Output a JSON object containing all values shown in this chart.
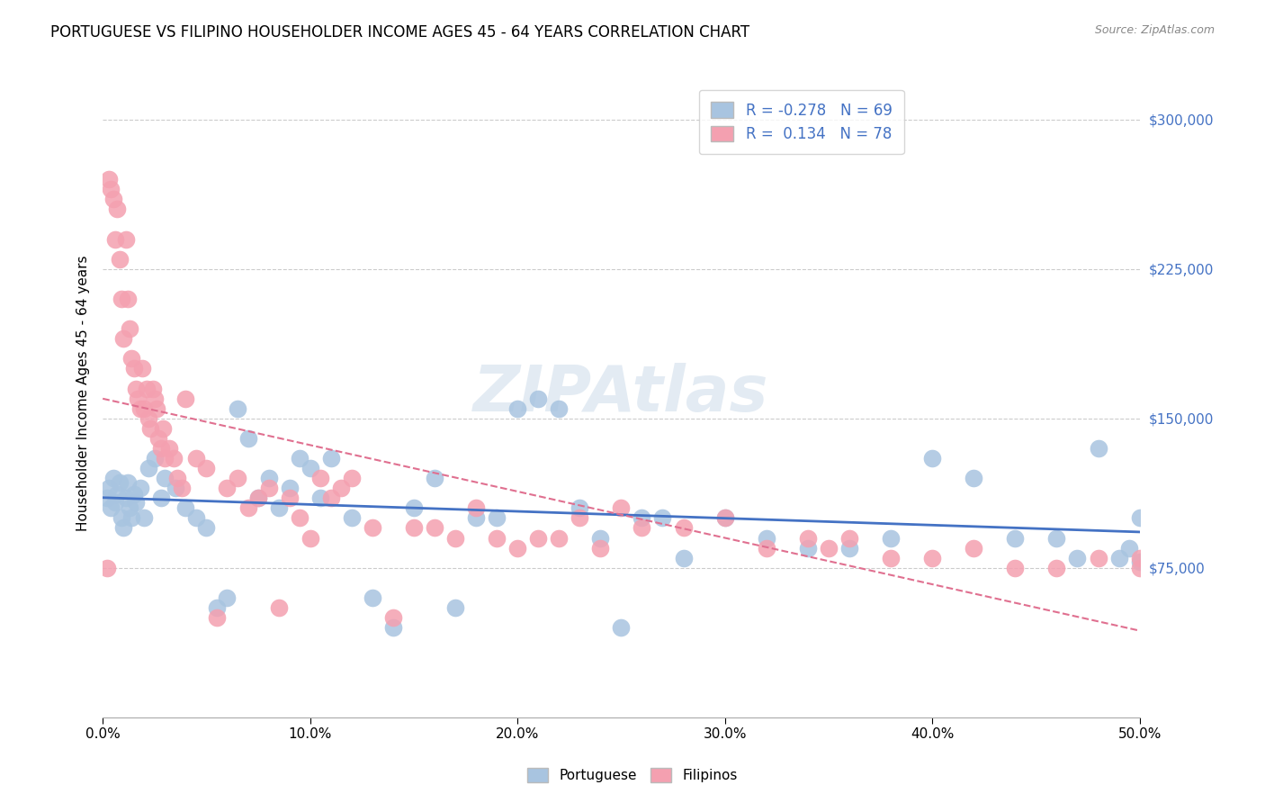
{
  "title": "PORTUGUESE VS FILIPINO HOUSEHOLDER INCOME AGES 45 - 64 YEARS CORRELATION CHART",
  "source": "Source: ZipAtlas.com",
  "xlabel_ticks": [
    "0.0%",
    "10.0%",
    "20.0%",
    "30.0%",
    "40.0%",
    "50.0%"
  ],
  "xlabel_vals": [
    0,
    10,
    20,
    30,
    40,
    50
  ],
  "ylabel_ticks": [
    "$75,000",
    "$150,000",
    "$225,000",
    "$300,000"
  ],
  "ylabel_vals": [
    75000,
    150000,
    225000,
    300000
  ],
  "ylabel_label": "Householder Income Ages 45 - 64 years",
  "xmin": 0,
  "xmax": 50,
  "ymin": 0,
  "ymax": 325000,
  "portuguese_R": -0.278,
  "portuguese_N": 69,
  "filipino_R": 0.134,
  "filipino_N": 78,
  "portuguese_color": "#a8c4e0",
  "filipino_color": "#f4a0b0",
  "portuguese_line_color": "#4472c4",
  "filipino_line_color": "#e07090",
  "watermark": "ZIPAtlas",
  "portuguese_x": [
    0.2,
    0.3,
    0.4,
    0.5,
    0.6,
    0.7,
    0.8,
    0.9,
    1.0,
    1.1,
    1.2,
    1.3,
    1.4,
    1.5,
    1.6,
    1.8,
    2.0,
    2.2,
    2.5,
    2.8,
    3.0,
    3.5,
    4.0,
    4.5,
    5.0,
    5.5,
    6.0,
    6.5,
    7.0,
    7.5,
    8.0,
    8.5,
    9.0,
    9.5,
    10.0,
    10.5,
    11.0,
    12.0,
    13.0,
    14.0,
    15.0,
    16.0,
    17.0,
    18.0,
    19.0,
    20.0,
    21.0,
    22.0,
    23.0,
    24.0,
    25.0,
    26.0,
    27.0,
    28.0,
    30.0,
    32.0,
    34.0,
    36.0,
    38.0,
    40.0,
    42.0,
    44.0,
    46.0,
    47.0,
    48.0,
    49.0,
    49.5,
    50.0,
    50.0
  ],
  "portuguese_y": [
    110000,
    115000,
    105000,
    120000,
    108000,
    112000,
    118000,
    100000,
    95000,
    110000,
    118000,
    105000,
    100000,
    112000,
    108000,
    115000,
    100000,
    125000,
    130000,
    110000,
    120000,
    115000,
    105000,
    100000,
    95000,
    55000,
    60000,
    155000,
    140000,
    110000,
    120000,
    105000,
    115000,
    130000,
    125000,
    110000,
    130000,
    100000,
    60000,
    45000,
    105000,
    120000,
    55000,
    100000,
    100000,
    155000,
    160000,
    155000,
    105000,
    90000,
    45000,
    100000,
    100000,
    80000,
    100000,
    90000,
    85000,
    85000,
    90000,
    130000,
    120000,
    90000,
    90000,
    80000,
    135000,
    80000,
    85000,
    78000,
    100000
  ],
  "filipino_x": [
    0.2,
    0.3,
    0.4,
    0.5,
    0.6,
    0.7,
    0.8,
    0.9,
    1.0,
    1.1,
    1.2,
    1.3,
    1.4,
    1.5,
    1.6,
    1.7,
    1.8,
    1.9,
    2.0,
    2.1,
    2.2,
    2.3,
    2.4,
    2.5,
    2.6,
    2.7,
    2.8,
    2.9,
    3.0,
    3.2,
    3.4,
    3.6,
    3.8,
    4.0,
    4.5,
    5.0,
    5.5,
    6.0,
    6.5,
    7.0,
    7.5,
    8.0,
    8.5,
    9.0,
    9.5,
    10.0,
    10.5,
    11.0,
    11.5,
    12.0,
    13.0,
    14.0,
    15.0,
    16.0,
    17.0,
    18.0,
    19.0,
    20.0,
    21.0,
    22.0,
    23.0,
    24.0,
    25.0,
    26.0,
    28.0,
    30.0,
    32.0,
    34.0,
    35.0,
    36.0,
    38.0,
    40.0,
    42.0,
    44.0,
    46.0,
    48.0,
    50.0,
    50.0
  ],
  "filipino_y": [
    75000,
    270000,
    265000,
    260000,
    240000,
    255000,
    230000,
    210000,
    190000,
    240000,
    210000,
    195000,
    180000,
    175000,
    165000,
    160000,
    155000,
    175000,
    155000,
    165000,
    150000,
    145000,
    165000,
    160000,
    155000,
    140000,
    135000,
    145000,
    130000,
    135000,
    130000,
    120000,
    115000,
    160000,
    130000,
    125000,
    50000,
    115000,
    120000,
    105000,
    110000,
    115000,
    55000,
    110000,
    100000,
    90000,
    120000,
    110000,
    115000,
    120000,
    95000,
    50000,
    95000,
    95000,
    90000,
    105000,
    90000,
    85000,
    90000,
    90000,
    100000,
    85000,
    105000,
    95000,
    95000,
    100000,
    85000,
    90000,
    85000,
    90000,
    80000,
    80000,
    85000,
    75000,
    75000,
    80000,
    75000,
    80000
  ]
}
